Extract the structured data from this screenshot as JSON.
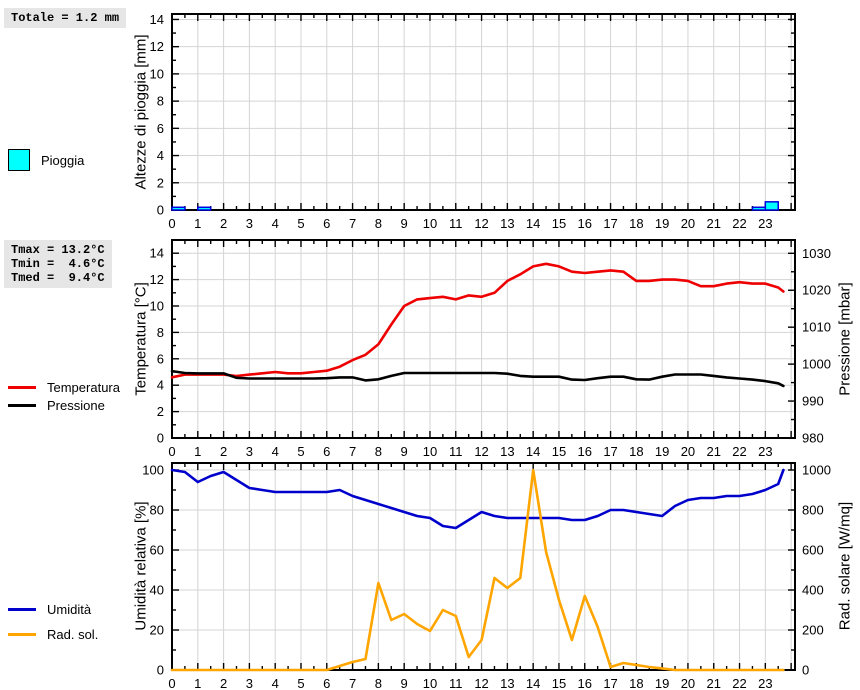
{
  "stats": {
    "rain_total": "Totale = 1.2 mm",
    "tmax_line": "Tmax = 13.2°C",
    "tmin_line": "Tmin =  4.6°C",
    "tmed_line": "Tmed =  9.4°C"
  },
  "legends": {
    "rain": "Pioggia",
    "temperature": "Temperatura",
    "pressure": "Pressione",
    "humidity": "Umidità",
    "radiation": "Rad. sol."
  },
  "colors": {
    "rain_fill": "#00ffff",
    "rain_border": "#0000e0",
    "temperature": "#ee0000",
    "pressure": "#000000",
    "humidity": "#0000cc",
    "radiation": "#ffa500",
    "grid": "#d4d4d4",
    "stats_bg": "#e6e6e6"
  },
  "chart_data": [
    {
      "type": "bar",
      "panel": "rain",
      "ylabel_left": "Altezze di pioggia [mm]",
      "ylim_left": [
        0,
        14.4
      ],
      "yticks_left": [
        0,
        2,
        4,
        6,
        8,
        10,
        12,
        14
      ],
      "yminor_left": 1,
      "xlim": [
        0,
        24.15
      ],
      "xticks": [
        0,
        1,
        2,
        3,
        4,
        5,
        6,
        7,
        8,
        9,
        10,
        11,
        12,
        13,
        14,
        15,
        16,
        17,
        18,
        19,
        20,
        21,
        22,
        23
      ],
      "bar_width_hours": 0.5,
      "bars": [
        {
          "hour": 0,
          "mm": 0.2
        },
        {
          "hour": 1,
          "mm": 0.2
        },
        {
          "hour": 22.5,
          "mm": 0.2
        },
        {
          "hour": 23,
          "mm": 0.6
        }
      ],
      "total_mm": 1.2,
      "bar_fill": "#00ffff",
      "bar_border": "#0000e0"
    },
    {
      "type": "line",
      "panel": "temperature-pressure",
      "ylabel_left": "Temperatura [°C]",
      "ylabel_right": "Pressione [mbar]",
      "ylim_left": [
        0,
        15
      ],
      "yticks_left": [
        0,
        2,
        4,
        6,
        8,
        10,
        12,
        14
      ],
      "yminor_left": 1,
      "ylim_right": [
        980,
        1033.6
      ],
      "yticks_right": [
        980,
        990,
        1000,
        1010,
        1020,
        1030
      ],
      "yminor_right": 5,
      "xlim": [
        0,
        24.15
      ],
      "xticks": [
        0,
        1,
        2,
        3,
        4,
        5,
        6,
        7,
        8,
        9,
        10,
        11,
        12,
        13,
        14,
        15,
        16,
        17,
        18,
        19,
        20,
        21,
        22,
        23
      ],
      "x": [
        0,
        0.5,
        1,
        1.5,
        2,
        2.5,
        3,
        3.5,
        4,
        4.5,
        5,
        5.5,
        6,
        6.5,
        7,
        7.5,
        8,
        8.5,
        9,
        9.5,
        10,
        10.5,
        11,
        11.5,
        12,
        12.5,
        13,
        13.5,
        14,
        14.5,
        15,
        15.5,
        16,
        16.5,
        17,
        17.5,
        18,
        18.5,
        19,
        19.5,
        20,
        20.5,
        21,
        21.5,
        22,
        22.5,
        23,
        23.5,
        23.7
      ],
      "series": [
        {
          "name": "Temperatura",
          "axis": "left",
          "color": "#ee0000",
          "values": [
            4.6,
            4.8,
            4.8,
            4.8,
            4.8,
            4.7,
            4.8,
            4.9,
            5.0,
            4.9,
            4.9,
            5.0,
            5.1,
            5.4,
            5.9,
            6.3,
            7.1,
            8.6,
            10.0,
            10.5,
            10.6,
            10.7,
            10.5,
            10.8,
            10.7,
            11.0,
            11.9,
            12.4,
            13.0,
            13.2,
            13.0,
            12.6,
            12.5,
            12.6,
            12.7,
            12.6,
            11.9,
            11.9,
            12.0,
            12.0,
            11.9,
            11.5,
            11.5,
            11.7,
            11.8,
            11.7,
            11.7,
            11.4,
            11.1
          ]
        },
        {
          "name": "Pressione",
          "axis": "right",
          "color": "#000000",
          "values": [
            998.1,
            997.6,
            997.5,
            997.5,
            997.5,
            996.3,
            996.1,
            996.1,
            996.1,
            996.1,
            996.1,
            996.1,
            996.2,
            996.4,
            996.4,
            995.6,
            995.9,
            996.8,
            997.6,
            997.6,
            997.6,
            997.6,
            997.6,
            997.6,
            997.6,
            997.6,
            997.4,
            996.8,
            996.6,
            996.6,
            996.6,
            995.8,
            995.7,
            996.2,
            996.6,
            996.6,
            995.9,
            995.8,
            996.6,
            997.2,
            997.2,
            997.2,
            996.8,
            996.4,
            996.1,
            995.8,
            995.4,
            994.8,
            994.1
          ]
        }
      ],
      "stats": {
        "tmax_c": 13.2,
        "tmin_c": 4.6,
        "tmed_c": 9.4
      }
    },
    {
      "type": "line",
      "panel": "humidity-radiation",
      "ylabel_left": "Umidità relativa [%]",
      "ylabel_right": "Rad. solare [W/mq]",
      "ylim_left": [
        0,
        103.5
      ],
      "yticks_left": [
        0,
        20,
        40,
        60,
        80,
        100
      ],
      "yminor_left": 10,
      "ylim_right": [
        0,
        1035
      ],
      "yticks_right": [
        0,
        200,
        400,
        600,
        800,
        1000
      ],
      "yminor_right": 100,
      "xlim": [
        0,
        24.15
      ],
      "xticks": [
        0,
        1,
        2,
        3,
        4,
        5,
        6,
        7,
        8,
        9,
        10,
        11,
        12,
        13,
        14,
        15,
        16,
        17,
        18,
        19,
        20,
        21,
        22,
        23
      ],
      "x": [
        0,
        0.5,
        1,
        1.5,
        2,
        2.5,
        3,
        3.5,
        4,
        4.5,
        5,
        5.5,
        6,
        6.5,
        7,
        7.5,
        8,
        8.5,
        9,
        9.5,
        10,
        10.5,
        11,
        11.5,
        12,
        12.5,
        13,
        13.5,
        14,
        14.5,
        15,
        15.5,
        16,
        16.5,
        17,
        17.5,
        18,
        18.5,
        19,
        19.5,
        20,
        20.5,
        21,
        21.5,
        22,
        22.5,
        23,
        23.5,
        23.7
      ],
      "series": [
        {
          "name": "Umidità",
          "axis": "left",
          "color": "#0000cc",
          "values": [
            100,
            99,
            94,
            97,
            99,
            95,
            91,
            90,
            89,
            89,
            89,
            89,
            89,
            90,
            87,
            85,
            83,
            81,
            79,
            77,
            76,
            72,
            71,
            75,
            79,
            77,
            76,
            76,
            76,
            76,
            76,
            75,
            75,
            77,
            80,
            80,
            79,
            78,
            77,
            82,
            85,
            86,
            86,
            87,
            87,
            88,
            90,
            93,
            100
          ]
        },
        {
          "name": "Rad. sol.",
          "axis": "right",
          "color": "#ffa500",
          "values": [
            0,
            0,
            0,
            0,
            0,
            0,
            0,
            0,
            0,
            0,
            0,
            0,
            0,
            20,
            40,
            55,
            435,
            250,
            280,
            230,
            195,
            300,
            270,
            65,
            150,
            460,
            410,
            460,
            1000,
            590,
            350,
            150,
            370,
            215,
            15,
            35,
            25,
            15,
            8,
            0,
            0,
            0,
            0,
            0,
            0,
            0,
            0,
            0,
            0
          ]
        }
      ]
    }
  ]
}
